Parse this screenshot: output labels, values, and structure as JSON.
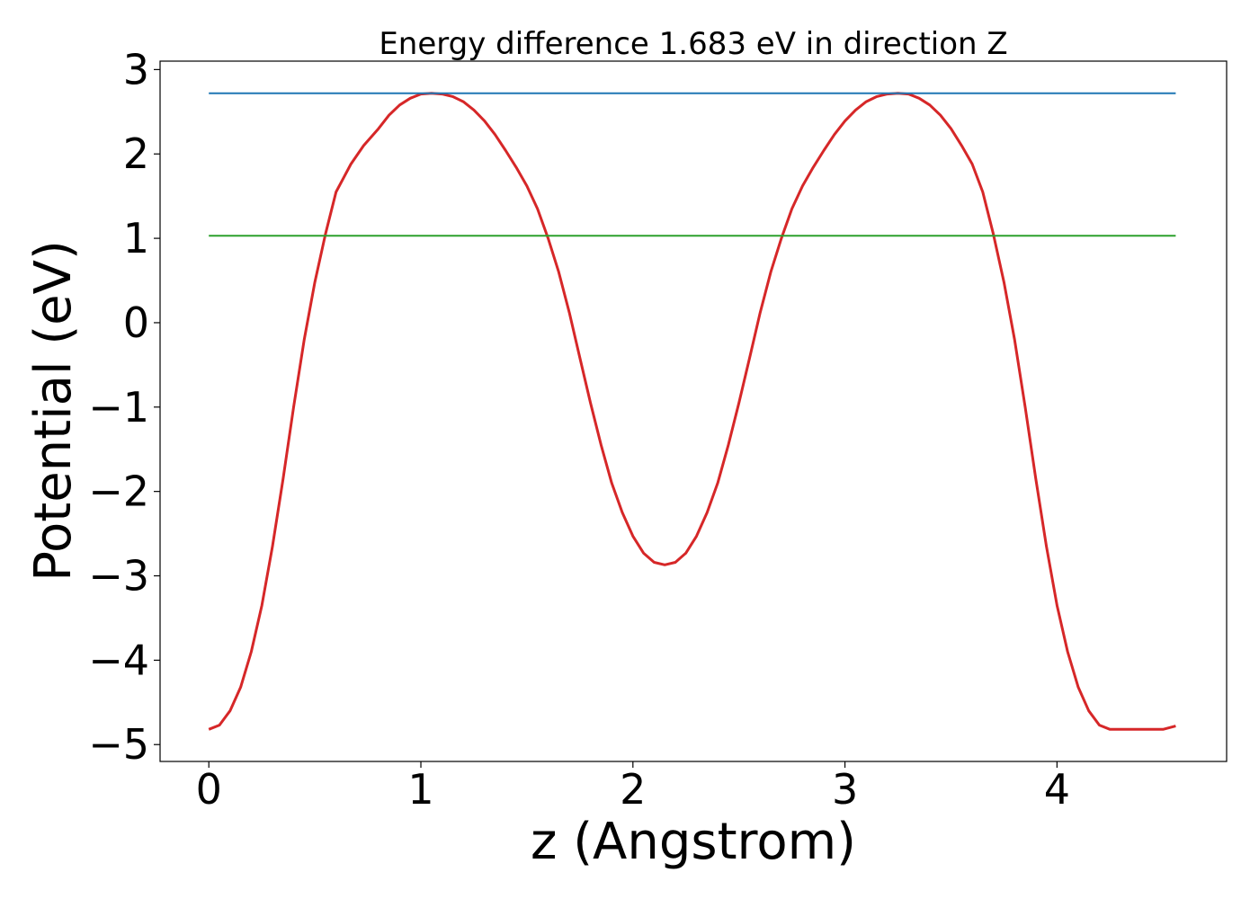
{
  "chart_data": {
    "type": "line",
    "title": "Energy difference 1.683 eV in direction Z",
    "xlabel": "z (Angstrom)",
    "ylabel": "Potential (eV)",
    "xlim": [
      -0.23,
      4.8
    ],
    "ylim": [
      -5.2,
      3.1
    ],
    "xticks": [
      0,
      1,
      2,
      3,
      4
    ],
    "yticks": [
      -5,
      -4,
      -3,
      -2,
      -1,
      0,
      1,
      2,
      3
    ],
    "xtick_labels": [
      "0",
      "1",
      "2",
      "3",
      "4"
    ],
    "ytick_labels": [
      "−5",
      "−4",
      "−3",
      "−2",
      "−1",
      "0",
      "1",
      "2",
      "3"
    ],
    "grid": false,
    "colors": {
      "potential": "#d62728",
      "upper_level": "#1f77b4",
      "lower_level": "#2ca02c"
    },
    "series": [
      {
        "values_x": [
          0,
          0.05,
          0.1,
          0.15,
          0.2,
          0.25,
          0.3,
          0.35,
          0.4,
          0.45,
          0.5,
          0.55,
          0.6,
          0.67,
          0.73,
          0.8,
          0.85,
          0.9,
          0.95,
          1.0,
          1.05,
          1.1,
          1.15,
          1.2,
          1.25,
          1.3,
          1.35,
          1.4,
          1.45,
          1.5,
          1.55,
          1.6,
          1.65,
          1.7,
          1.75,
          1.8,
          1.85,
          1.9,
          1.95,
          2.0,
          2.05,
          2.1,
          2.15,
          2.2,
          2.25,
          2.3,
          2.35,
          2.4,
          2.45,
          2.5,
          2.55,
          2.6,
          2.65,
          2.7,
          2.75,
          2.8,
          2.85,
          2.9,
          2.95,
          3.0,
          3.05,
          3.1,
          3.15,
          3.2,
          3.25,
          3.3,
          3.35,
          3.4,
          3.45,
          3.5,
          3.55,
          3.6,
          3.65,
          3.7,
          3.75,
          3.8,
          3.85,
          3.9,
          3.95,
          4.0,
          4.05,
          4.1,
          4.15,
          4.2,
          4.25,
          4.3,
          4.35,
          4.4,
          4.45,
          4.5,
          4.56
        ],
        "values_y": [
          -4.82,
          -4.77,
          -4.6,
          -4.32,
          -3.9,
          -3.35,
          -2.65,
          -1.85,
          -1.0,
          -0.2,
          0.48,
          1.05,
          1.55,
          1.88,
          2.1,
          2.3,
          2.46,
          2.58,
          2.66,
          2.71,
          2.72,
          2.71,
          2.68,
          2.62,
          2.52,
          2.39,
          2.23,
          2.04,
          1.84,
          1.62,
          1.35,
          1.0,
          0.6,
          0.12,
          -0.42,
          -0.95,
          -1.45,
          -1.9,
          -2.25,
          -2.53,
          -2.73,
          -2.84,
          -2.87,
          -2.84,
          -2.73,
          -2.53,
          -2.25,
          -1.9,
          -1.45,
          -0.95,
          -0.42,
          0.12,
          0.6,
          1.0,
          1.35,
          1.62,
          1.84,
          2.04,
          2.23,
          2.39,
          2.52,
          2.62,
          2.68,
          2.71,
          2.72,
          2.71,
          2.66,
          2.58,
          2.46,
          2.3,
          2.1,
          1.88,
          1.55,
          1.05,
          0.48,
          -0.2,
          -1.0,
          -1.85,
          -2.65,
          -3.35,
          -3.9,
          -4.32,
          -4.6,
          -4.77,
          -4.82,
          -4.82,
          -4.82,
          -4.82,
          -4.82,
          -4.82,
          -4.78
        ]
      },
      {
        "values_x": [
          0,
          4.56
        ],
        "values_y": [
          2.72,
          2.72
        ]
      },
      {
        "values_x": [
          0,
          4.56
        ],
        "values_y": [
          1.03,
          1.03
        ]
      }
    ]
  }
}
